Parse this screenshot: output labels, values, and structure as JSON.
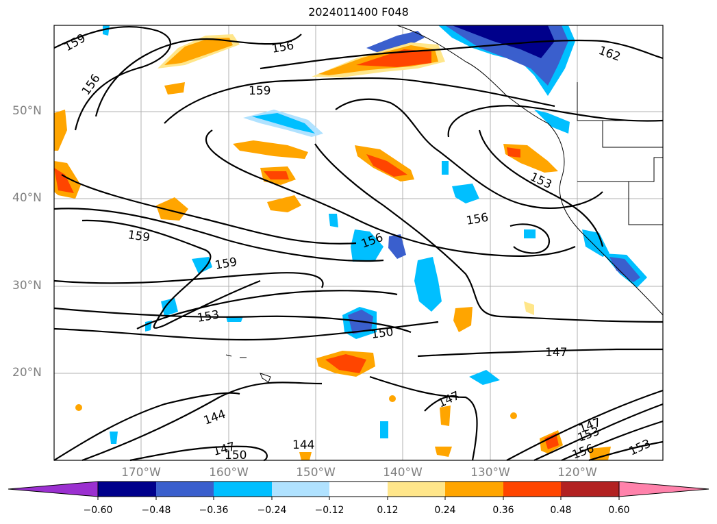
{
  "title": "2024011400 F048",
  "lat_labels": [
    "50°N",
    "40°N",
    "30°N",
    "20°N"
  ],
  "lon_labels": [
    "170°W",
    "160°W",
    "150°W",
    "140°W",
    "130°W",
    "120°W"
  ],
  "contour_labels": [
    "159",
    "156",
    "156",
    "159",
    "156",
    "153",
    "162",
    "159",
    "156",
    "159",
    "153",
    "150",
    "147",
    "144",
    "147",
    "150",
    "144",
    "147",
    "153",
    "156",
    "153",
    "147"
  ],
  "colorbar": {
    "ticks": [
      "−0.60",
      "−0.48",
      "−0.36",
      "−0.24",
      "−0.12",
      "0.12",
      "0.24",
      "0.36",
      "0.48",
      "0.60"
    ],
    "colors": [
      "#9b30d0",
      "#00008b",
      "#3a5fcd",
      "#00bfff",
      "#b0e2ff",
      "#ffffff",
      "#ffe68a",
      "#ffa500",
      "#ff4500",
      "#b22222",
      "#ff82ab"
    ]
  }
}
